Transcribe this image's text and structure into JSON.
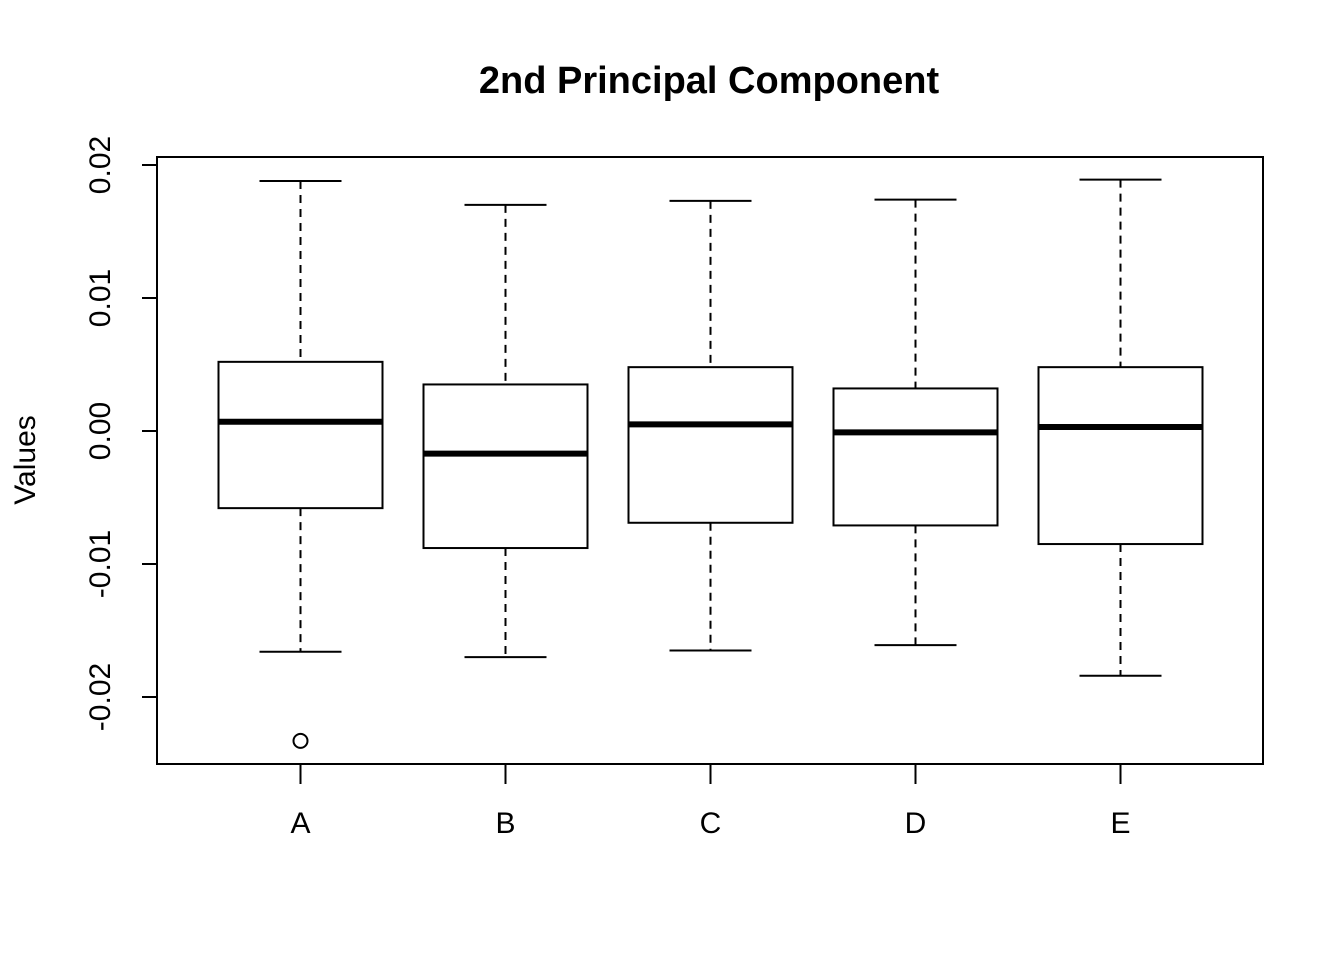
{
  "chart_data": {
    "type": "boxplot",
    "title": "2nd Principal Component",
    "xlabel": "",
    "ylabel": "Values",
    "ylim": [
      -0.025,
      0.0205
    ],
    "yticks": [
      -0.02,
      -0.01,
      0.0,
      0.01,
      0.02
    ],
    "ytick_labels": [
      "-0.02",
      "-0.01",
      "0.00",
      "0.01",
      "0.02"
    ],
    "categories": [
      "A",
      "B",
      "C",
      "D",
      "E"
    ],
    "boxes": [
      {
        "name": "A",
        "lower_whisker": -0.0166,
        "q1": -0.0058,
        "median": 0.0007,
        "q3": 0.0052,
        "upper_whisker": 0.0188,
        "outliers": [
          -0.0233
        ]
      },
      {
        "name": "B",
        "lower_whisker": -0.017,
        "q1": -0.0088,
        "median": -0.0017,
        "q3": 0.0035,
        "upper_whisker": 0.017,
        "outliers": []
      },
      {
        "name": "C",
        "lower_whisker": -0.0165,
        "q1": -0.0069,
        "median": 0.0005,
        "q3": 0.0048,
        "upper_whisker": 0.0173,
        "outliers": []
      },
      {
        "name": "D",
        "lower_whisker": -0.0161,
        "q1": -0.0071,
        "median": -0.0001,
        "q3": 0.0032,
        "upper_whisker": 0.0174,
        "outliers": []
      },
      {
        "name": "E",
        "lower_whisker": -0.0184,
        "q1": -0.0085,
        "median": 0.0003,
        "q3": 0.0048,
        "upper_whisker": 0.0189,
        "outliers": []
      }
    ],
    "grid": false,
    "legend": "none"
  }
}
